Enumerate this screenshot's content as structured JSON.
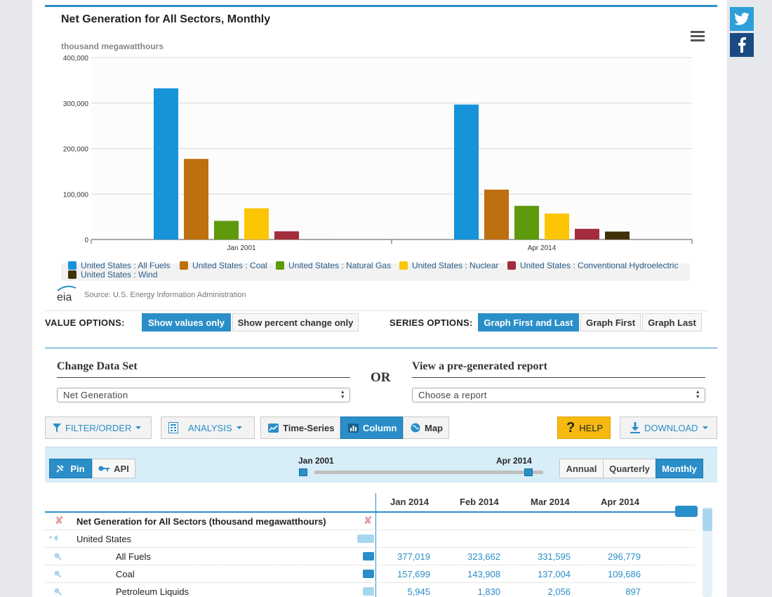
{
  "chart": {
    "title": "Net Generation for All Sectors, Monthly",
    "units": "thousand megawatthours",
    "source": "Source: U.S. Energy Information Administration",
    "logo_text": "eia"
  },
  "chart_data": {
    "type": "bar",
    "title": "Net Generation for All Sectors, Monthly",
    "ylabel": "thousand megawatthours",
    "categories": [
      "Jan 2001",
      "Apr 2014"
    ],
    "ylim": [
      0,
      400000
    ],
    "yticks": [
      "0",
      "100,000",
      "200,000",
      "300,000",
      "400,000"
    ],
    "grid": true,
    "legend": "bottom",
    "series": [
      {
        "name": "United States : All Fuels",
        "color": "#1793d9",
        "values": [
          332493,
          296779
        ]
      },
      {
        "name": "United States : Coal",
        "color": "#be6f0e",
        "values": [
          177287,
          109686
        ]
      },
      {
        "name": "United States : Natural Gas",
        "color": "#5e9a0c",
        "values": [
          41000,
          74000
        ]
      },
      {
        "name": "United States : Nuclear",
        "color": "#fcc503",
        "values": [
          68707,
          57000
        ]
      },
      {
        "name": "United States : Conventional Hydroelectric",
        "color": "#a32c3c",
        "values": [
          18000,
          23500
        ]
      },
      {
        "name": "United States : Wind",
        "color": "#403108",
        "values": [
          300,
          17500
        ]
      }
    ]
  },
  "value_options": {
    "label": "VALUE OPTIONS:",
    "buttons": [
      "Show values only",
      "Show percent change only"
    ],
    "active": "Show values only"
  },
  "series_options": {
    "label": "SERIES OPTIONS:",
    "buttons": [
      "Graph First and Last",
      "Graph First",
      "Graph Last"
    ],
    "active": "Graph First and Last"
  },
  "change_data": {
    "heading": "Change Data Set",
    "selected": "Net Generation"
  },
  "or_text": "OR",
  "report": {
    "heading": "View a pre-generated report",
    "selected": "Choose a report"
  },
  "toolbar": {
    "filter": "FILTER/ORDER",
    "analysis": "ANALYSIS",
    "time_series": "Time-Series",
    "column": "Column",
    "map": "Map",
    "help": "HELP",
    "download": "DOWNLOAD"
  },
  "range": {
    "pin": "Pin",
    "api": "API",
    "start": "Jan 2001",
    "end": "Apr 2014",
    "annual": "Annual",
    "quarterly": "Quarterly",
    "monthly": "Monthly"
  },
  "table": {
    "title": "Net Generation for All Sectors (thousand megawatthours)",
    "columns": [
      "Jan 2014",
      "Feb 2014",
      "Mar 2014",
      "Apr 2014"
    ],
    "region": "United States",
    "rows": [
      {
        "name": "All Fuels",
        "values": [
          "377,019",
          "323,662",
          "331,595",
          "296,779"
        ]
      },
      {
        "name": "Coal",
        "values": [
          "157,699",
          "143,908",
          "137,004",
          "109,686"
        ]
      },
      {
        "name": "Petroleum Liquids",
        "values": [
          "5,945",
          "1,830",
          "2,056",
          "897"
        ]
      }
    ]
  }
}
